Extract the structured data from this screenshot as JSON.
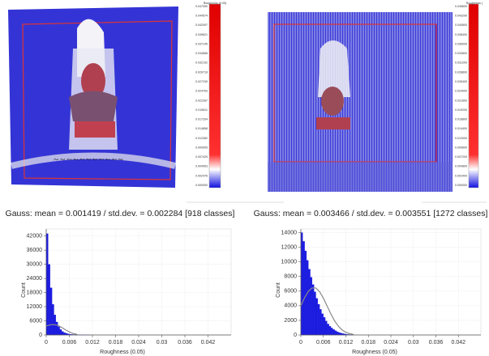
{
  "chart_data": [
    {
      "type": "histogram",
      "title": "Gauss: mean = 0.001419 / std.dev. = 0.002284 [918 classes]",
      "x_label": "Roughness (0.05)",
      "y_label": "Count",
      "color": "#1c1ce0",
      "grid": true,
      "bins": [
        0,
        0.0005,
        0.001,
        0.0015,
        0.002,
        0.0025,
        0.003,
        0.0035,
        0.004,
        0.0045,
        0.005,
        0.0055,
        0.006,
        0.0065,
        0.007,
        0.0075,
        0.008,
        0.0085,
        0.009,
        0.0095,
        0.01,
        0.0105,
        0.011,
        0.0115,
        0.012
      ],
      "values": [
        43000,
        30000,
        20000,
        13000,
        8500,
        5500,
        3500,
        2300,
        1500,
        1000,
        700,
        450,
        300,
        200,
        130,
        90,
        60,
        40,
        25,
        15,
        10,
        5,
        3,
        0
      ],
      "curve": {
        "color": "#8a8a8a",
        "x": [
          0,
          0.001,
          0.002,
          0.003,
          0.004,
          0.005,
          0.006,
          0.007,
          0.008
        ],
        "values": [
          3800,
          4300,
          4400,
          4100,
          3200,
          2200,
          1300,
          600,
          250
        ]
      },
      "xlim": [
        0,
        0.048
      ],
      "xticks": [
        0,
        0.006,
        0.012,
        0.018,
        0.024,
        0.03,
        0.036,
        0.042
      ],
      "ylim": [
        0,
        45000
      ],
      "yticks": [
        0,
        6000,
        12000,
        18000,
        24000,
        30000,
        36000,
        42000
      ]
    },
    {
      "type": "histogram",
      "title": "Gauss: mean = 0.003466 / std.dev. = 0.003551 [1272 classes]",
      "x_label": "Roughness (0.05)",
      "y_label": "Count",
      "color": "#1c1ce0",
      "grid": true,
      "bins": [
        0,
        0.0005,
        0.001,
        0.0015,
        0.002,
        0.0025,
        0.003,
        0.0035,
        0.004,
        0.0045,
        0.005,
        0.0055,
        0.006,
        0.0065,
        0.007,
        0.0075,
        0.008,
        0.0085,
        0.009,
        0.0095,
        0.01,
        0.0105,
        0.011,
        0.0115,
        0.012,
        0.0125,
        0.013,
        0.0135,
        0.014
      ],
      "values": [
        14000,
        12800,
        11500,
        10200,
        9000,
        7900,
        6900,
        5900,
        5000,
        4200,
        3500,
        2900,
        2400,
        1900,
        1500,
        1200,
        950,
        750,
        580,
        440,
        330,
        250,
        180,
        130,
        90,
        60,
        40,
        20
      ],
      "curve": {
        "color": "#8a8a8a",
        "x": [
          0,
          0.001,
          0.002,
          0.003,
          0.004,
          0.005,
          0.006,
          0.007,
          0.008,
          0.009,
          0.01,
          0.011,
          0.012,
          0.013,
          0.014
        ],
        "values": [
          4000,
          5100,
          5970,
          6440,
          6430,
          5920,
          5040,
          3960,
          2880,
          1930,
          1200,
          680,
          360,
          180,
          80
        ]
      },
      "xlim": [
        0,
        0.048
      ],
      "xticks": [
        0,
        0.006,
        0.012,
        0.018,
        0.024,
        0.03,
        0.036,
        0.042
      ],
      "ylim": [
        0,
        14500
      ],
      "yticks": [
        0,
        2000,
        4000,
        6000,
        8000,
        10000,
        12000,
        14000
      ]
    }
  ],
  "colorbars": [
    {
      "title": "Roughness (0.05)",
      "labels": [
        "0.047050",
        "0.044574",
        "0.042097",
        "0.039621",
        "0.037145",
        "0.034668",
        "0.032192",
        "0.029716",
        "0.027239",
        "0.024763",
        "0.022287",
        "0.019811",
        "0.017334",
        "0.014858",
        "0.012382",
        "0.009905",
        "0.007429",
        "0.004953",
        "0.002476",
        "0.000000"
      ]
    },
    {
      "title": "Roughness (",
      "labels": [
        "0.045600",
        "0.043200",
        "0.040800",
        "0.038400",
        "0.036000",
        "0.033600",
        "0.031200",
        "0.028800",
        "0.026400",
        "0.024000",
        "0.021600",
        "0.019200",
        "0.016800",
        "0.014400",
        "0.012000",
        "0.009600",
        "0.007200",
        "0.004800",
        "0.002400",
        "0.000000"
      ]
    }
  ]
}
